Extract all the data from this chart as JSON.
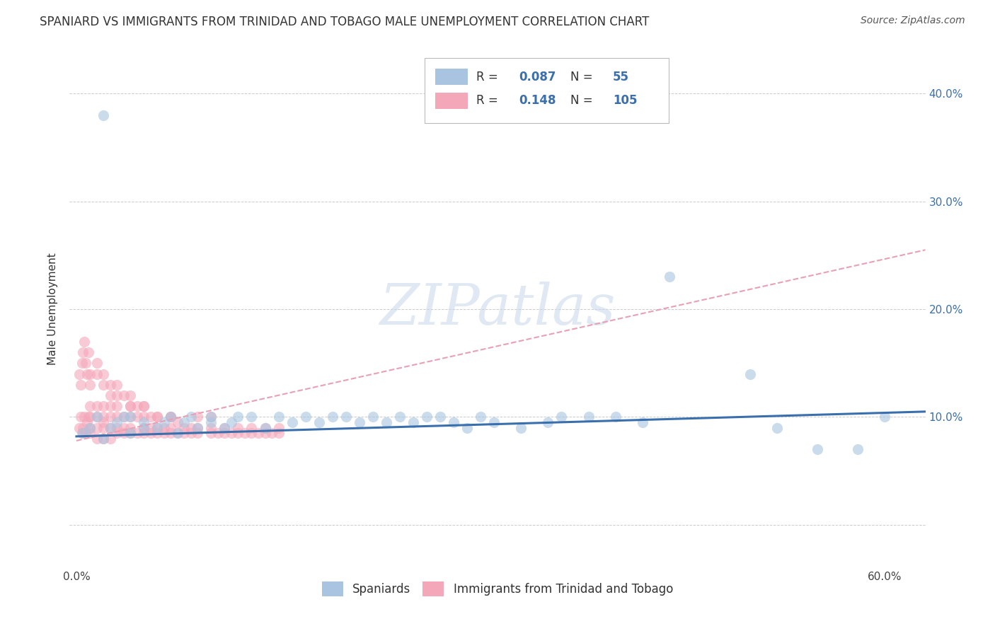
{
  "title": "SPANIARD VS IMMIGRANTS FROM TRINIDAD AND TOBAGO MALE UNEMPLOYMENT CORRELATION CHART",
  "source": "Source: ZipAtlas.com",
  "ylabel": "Male Unemployment",
  "x_ticks": [
    0.0,
    0.1,
    0.2,
    0.3,
    0.4,
    0.5,
    0.6
  ],
  "x_tick_labels": [
    "0.0%",
    "",
    "",
    "",
    "",
    "",
    "60.0%"
  ],
  "y_ticks_left": [
    0.0,
    0.1,
    0.2,
    0.3,
    0.4
  ],
  "y_tick_labels_left": [
    "",
    "",
    "",
    "",
    ""
  ],
  "y_ticks_right": [
    0.0,
    0.1,
    0.2,
    0.3,
    0.4
  ],
  "y_tick_labels_right": [
    "",
    "10.0%",
    "20.0%",
    "30.0%",
    "40.0%"
  ],
  "xlim": [
    -0.005,
    0.63
  ],
  "ylim": [
    -0.04,
    0.44
  ],
  "spaniards_color": "#a8c4e0",
  "immigrants_color": "#f4a7b9",
  "spaniards_line_color": "#3a6fad",
  "immigrants_line_color": "#e8a0b4",
  "R_spaniards": 0.087,
  "N_spaniards": 55,
  "R_immigrants": 0.148,
  "N_immigrants": 105,
  "watermark_text": "ZIPatlas",
  "legend_labels": [
    "Spaniards",
    "Immigrants from Trinidad and Tobago"
  ],
  "spaniards_x": [
    0.005,
    0.01,
    0.015,
    0.02,
    0.025,
    0.03,
    0.035,
    0.04,
    0.04,
    0.05,
    0.05,
    0.06,
    0.065,
    0.07,
    0.075,
    0.08,
    0.085,
    0.09,
    0.1,
    0.1,
    0.11,
    0.115,
    0.12,
    0.13,
    0.14,
    0.15,
    0.16,
    0.17,
    0.18,
    0.19,
    0.2,
    0.21,
    0.22,
    0.23,
    0.24,
    0.25,
    0.26,
    0.27,
    0.28,
    0.29,
    0.3,
    0.31,
    0.33,
    0.35,
    0.36,
    0.38,
    0.4,
    0.42,
    0.44,
    0.5,
    0.52,
    0.55,
    0.58,
    0.6,
    0.02
  ],
  "spaniards_y": [
    0.085,
    0.09,
    0.1,
    0.08,
    0.09,
    0.095,
    0.1,
    0.085,
    0.1,
    0.09,
    0.095,
    0.09,
    0.095,
    0.1,
    0.085,
    0.095,
    0.1,
    0.09,
    0.095,
    0.1,
    0.09,
    0.095,
    0.1,
    0.1,
    0.09,
    0.1,
    0.095,
    0.1,
    0.095,
    0.1,
    0.1,
    0.095,
    0.1,
    0.095,
    0.1,
    0.095,
    0.1,
    0.1,
    0.095,
    0.09,
    0.1,
    0.095,
    0.09,
    0.095,
    0.1,
    0.1,
    0.1,
    0.095,
    0.23,
    0.14,
    0.09,
    0.07,
    0.07,
    0.1,
    0.38
  ],
  "immigrants_x": [
    0.002,
    0.003,
    0.004,
    0.005,
    0.006,
    0.007,
    0.008,
    0.009,
    0.01,
    0.01,
    0.01,
    0.01,
    0.015,
    0.015,
    0.015,
    0.015,
    0.02,
    0.02,
    0.02,
    0.02,
    0.02,
    0.025,
    0.025,
    0.025,
    0.025,
    0.03,
    0.03,
    0.03,
    0.03,
    0.035,
    0.035,
    0.035,
    0.04,
    0.04,
    0.04,
    0.04,
    0.045,
    0.045,
    0.05,
    0.05,
    0.05,
    0.05,
    0.055,
    0.055,
    0.055,
    0.06,
    0.06,
    0.06,
    0.065,
    0.065,
    0.07,
    0.07,
    0.07,
    0.075,
    0.075,
    0.08,
    0.08,
    0.085,
    0.085,
    0.09,
    0.09,
    0.09,
    0.1,
    0.1,
    0.1,
    0.105,
    0.11,
    0.11,
    0.115,
    0.12,
    0.12,
    0.125,
    0.13,
    0.13,
    0.135,
    0.14,
    0.14,
    0.145,
    0.15,
    0.15,
    0.002,
    0.003,
    0.004,
    0.005,
    0.006,
    0.007,
    0.008,
    0.009,
    0.01,
    0.01,
    0.015,
    0.015,
    0.02,
    0.02,
    0.025,
    0.025,
    0.03,
    0.03,
    0.035,
    0.04,
    0.04,
    0.045,
    0.05,
    0.06,
    0.07
  ],
  "immigrants_y": [
    0.09,
    0.1,
    0.085,
    0.09,
    0.1,
    0.085,
    0.095,
    0.1,
    0.085,
    0.09,
    0.1,
    0.11,
    0.08,
    0.09,
    0.1,
    0.11,
    0.08,
    0.09,
    0.095,
    0.1,
    0.11,
    0.08,
    0.09,
    0.1,
    0.11,
    0.085,
    0.09,
    0.1,
    0.11,
    0.085,
    0.09,
    0.1,
    0.085,
    0.09,
    0.1,
    0.11,
    0.085,
    0.1,
    0.085,
    0.09,
    0.1,
    0.11,
    0.085,
    0.09,
    0.1,
    0.085,
    0.09,
    0.1,
    0.085,
    0.09,
    0.085,
    0.09,
    0.1,
    0.085,
    0.095,
    0.085,
    0.09,
    0.085,
    0.09,
    0.085,
    0.09,
    0.1,
    0.085,
    0.09,
    0.1,
    0.085,
    0.085,
    0.09,
    0.085,
    0.085,
    0.09,
    0.085,
    0.085,
    0.09,
    0.085,
    0.085,
    0.09,
    0.085,
    0.085,
    0.09,
    0.14,
    0.13,
    0.15,
    0.16,
    0.17,
    0.15,
    0.14,
    0.16,
    0.13,
    0.14,
    0.14,
    0.15,
    0.13,
    0.14,
    0.12,
    0.13,
    0.12,
    0.13,
    0.12,
    0.12,
    0.11,
    0.11,
    0.11,
    0.1,
    0.1
  ]
}
